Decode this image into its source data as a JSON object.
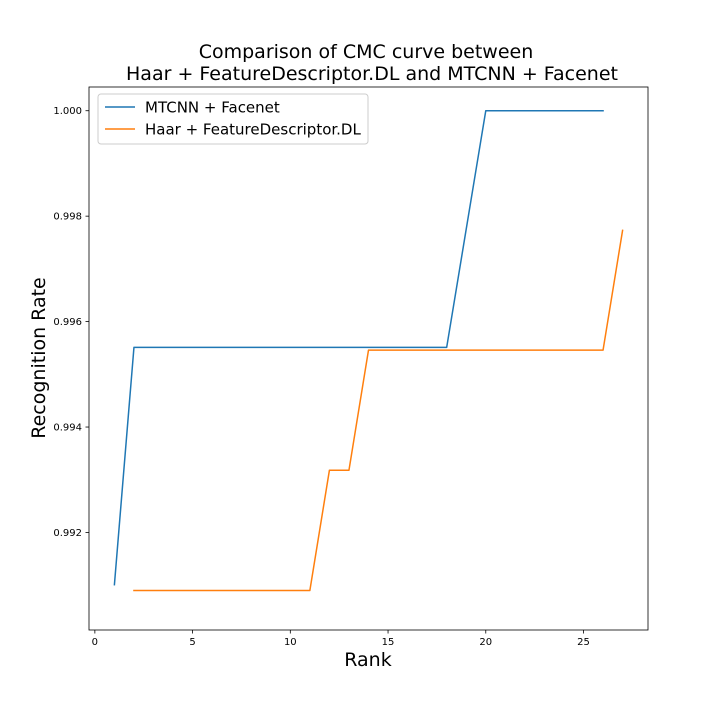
{
  "chart_data": {
    "type": "line",
    "title": "Comparison of CMC curve between",
    "subtitle": "Haar + FeatureDescriptor.DL and MTCNN + Facenet",
    "xlabel": "Rank",
    "ylabel": "Recognition Rate",
    "xlim": [
      -0.3,
      28.3
    ],
    "ylim": [
      0.99015,
      1.00045
    ],
    "xticks": [
      0,
      5,
      10,
      15,
      20,
      25
    ],
    "yticks": [
      0.992,
      0.994,
      0.996,
      0.998,
      1.0
    ],
    "xtick_labels": [
      "0",
      "5",
      "10",
      "15",
      "20",
      "25"
    ],
    "ytick_labels": [
      "0.992",
      "0.994",
      "0.996",
      "0.998",
      "1.000"
    ],
    "grid": false,
    "legend_position": "top-left",
    "series": [
      {
        "name": "MTCNN + Facenet",
        "color": "#1f77b4",
        "x": [
          1,
          2,
          18,
          20,
          26
        ],
        "y": [
          0.99101,
          0.99551,
          0.99551,
          1.0,
          1.0
        ]
      },
      {
        "name": "Haar + FeatureDescriptor.DL",
        "color": "#ff7f0e",
        "x": [
          2,
          11,
          12,
          13,
          14,
          26,
          27
        ],
        "y": [
          0.9909,
          0.9909,
          0.99318,
          0.99318,
          0.99546,
          0.99546,
          0.99773
        ]
      }
    ]
  }
}
